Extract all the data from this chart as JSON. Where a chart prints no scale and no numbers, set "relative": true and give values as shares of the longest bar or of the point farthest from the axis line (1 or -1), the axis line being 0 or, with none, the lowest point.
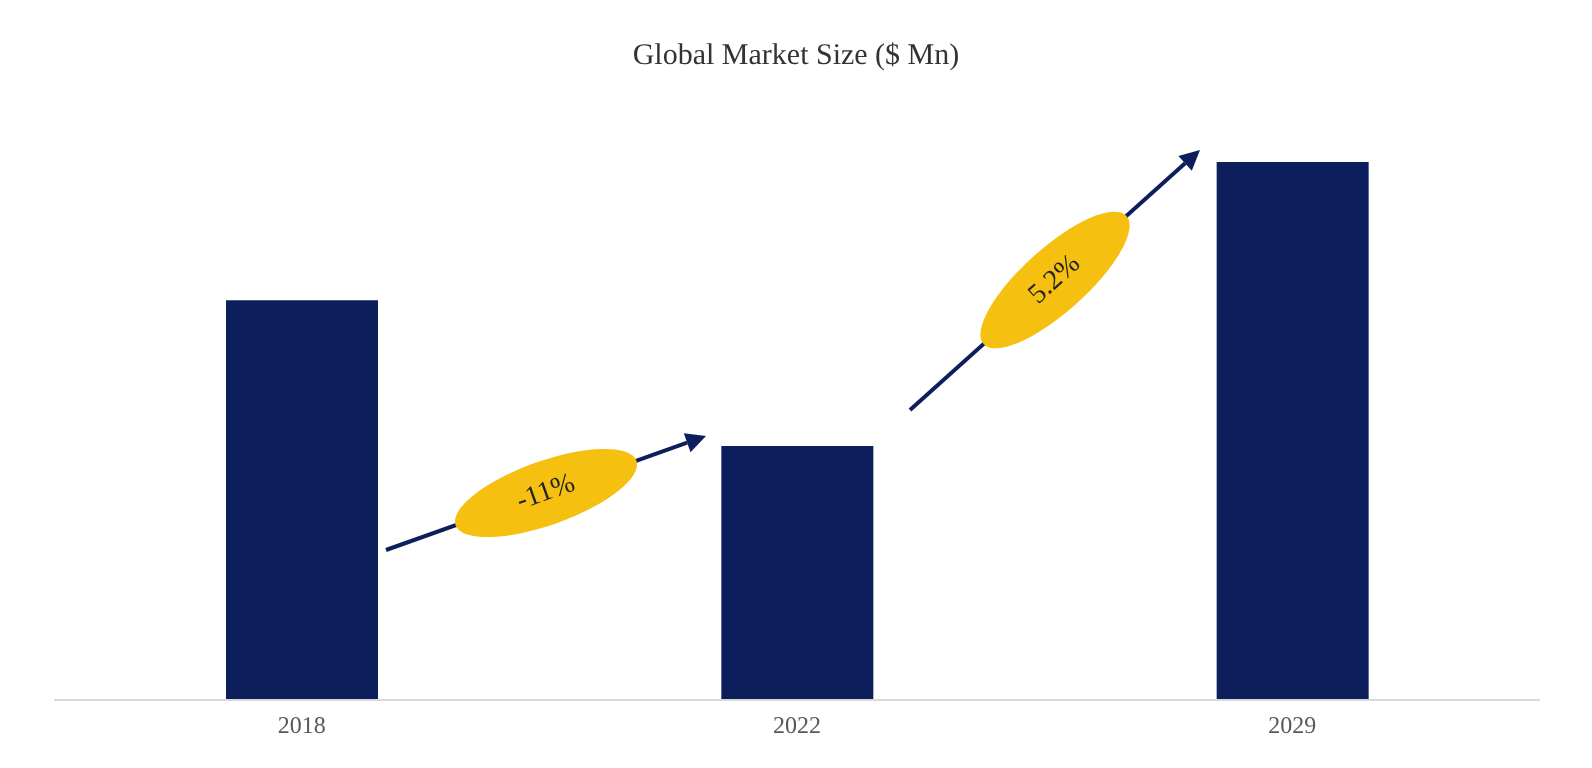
{
  "chart_data": {
    "type": "bar",
    "title": "Global Market Size ($ Mn)",
    "categories": [
      "2018",
      "2022",
      "2029"
    ],
    "values": [
      0.743,
      0.472,
      1
    ],
    "color": "#0c1f5c",
    "relative": true,
    "annotations": [
      "-11%",
      "5.2%"
    ]
  }
}
